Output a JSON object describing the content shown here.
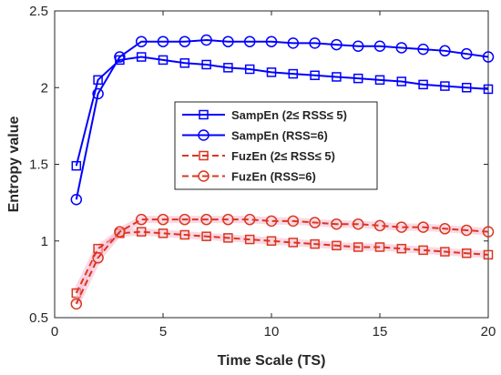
{
  "chart_data": {
    "type": "line",
    "xlabel": "Time Scale (TS)",
    "ylabel": "Entropy value",
    "xlim": [
      0,
      20
    ],
    "ylim": [
      0.5,
      2.5
    ],
    "xticks": [
      0,
      5,
      10,
      15,
      20
    ],
    "yticks": [
      0.5,
      1,
      1.5,
      2,
      2.5
    ],
    "grid": false,
    "legend_position": "center",
    "x": [
      1,
      2,
      3,
      4,
      5,
      6,
      7,
      8,
      9,
      10,
      11,
      12,
      13,
      14,
      15,
      16,
      17,
      18,
      19,
      20
    ],
    "series": [
      {
        "name": "SampEn (2≤ RSS≤ 5)",
        "color": "#0000ff",
        "marker": "square",
        "line": "solid",
        "values": [
          1.49,
          2.05,
          2.18,
          2.2,
          2.18,
          2.16,
          2.15,
          2.13,
          2.12,
          2.1,
          2.09,
          2.08,
          2.07,
          2.06,
          2.05,
          2.04,
          2.02,
          2.01,
          2.0,
          1.99
        ]
      },
      {
        "name": "SampEn (RSS=6)",
        "color": "#0000ff",
        "marker": "circle",
        "line": "solid",
        "values": [
          1.27,
          1.96,
          2.2,
          2.3,
          2.3,
          2.3,
          2.31,
          2.3,
          2.3,
          2.3,
          2.29,
          2.29,
          2.28,
          2.27,
          2.27,
          2.26,
          2.25,
          2.24,
          2.22,
          2.2
        ]
      },
      {
        "name": "FuzEn (2≤ RSS≤ 5)",
        "color": "#d9371f",
        "marker": "square",
        "line": "dashed",
        "values": [
          0.66,
          0.95,
          1.05,
          1.06,
          1.05,
          1.04,
          1.03,
          1.02,
          1.01,
          1.0,
          0.99,
          0.98,
          0.97,
          0.96,
          0.96,
          0.95,
          0.94,
          0.93,
          0.92,
          0.91
        ]
      },
      {
        "name": "FuzEn (RSS=6)",
        "color": "#d9371f",
        "marker": "circle",
        "line": "dashed",
        "values": [
          0.59,
          0.89,
          1.06,
          1.14,
          1.14,
          1.14,
          1.14,
          1.14,
          1.14,
          1.13,
          1.13,
          1.12,
          1.11,
          1.11,
          1.1,
          1.09,
          1.09,
          1.08,
          1.07,
          1.06
        ]
      }
    ]
  }
}
